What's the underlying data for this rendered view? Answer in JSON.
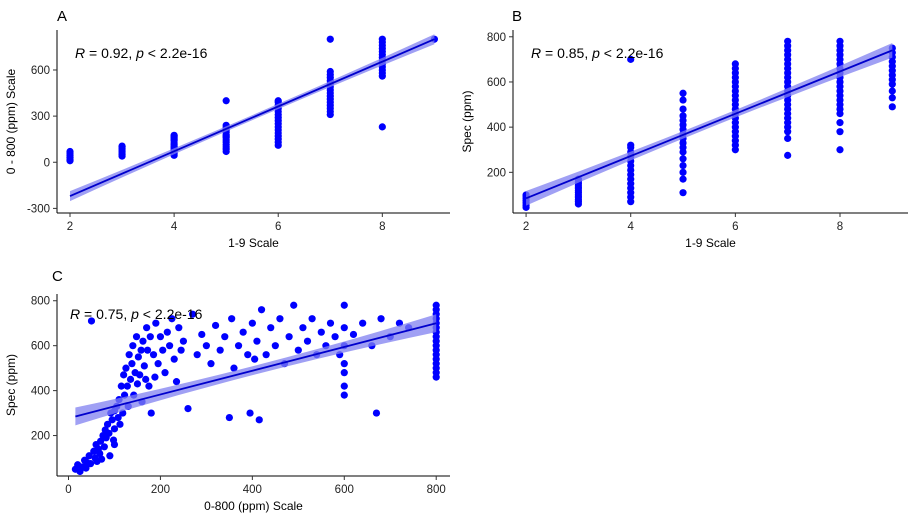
{
  "chart_data": [
    {
      "panel": "A",
      "type": "scatter",
      "xlabel": "1-9 Scale",
      "ylabel": "0 - 800 (ppm) Scale",
      "xlim": [
        1.75,
        9.3
      ],
      "ylim": [
        -330,
        860
      ],
      "xticks": [
        2,
        4,
        6,
        8
      ],
      "yticks": [
        -300,
        0,
        300,
        600
      ],
      "annotation": {
        "R": "0.92",
        "p": "2.2e-16"
      },
      "point_color": "#0000ff",
      "fit_color": "#0000cc",
      "band_color": "#8080f0",
      "fit": {
        "x": [
          2,
          9
        ],
        "y": [
          -220,
          800
        ],
        "band": 18
      },
      "groups": [
        {
          "x": 2,
          "y": [
            10,
            18,
            30,
            45,
            60,
            70
          ]
        },
        {
          "x": 3,
          "y": [
            40,
            50,
            60,
            70,
            80,
            90,
            100,
            105
          ]
        },
        {
          "x": 4,
          "y": [
            45,
            55,
            65,
            75,
            85,
            95,
            105,
            115,
            125,
            140,
            150,
            160,
            170,
            175
          ]
        },
        {
          "x": 5,
          "y": [
            70,
            85,
            100,
            115,
            130,
            145,
            160,
            170,
            180,
            195,
            210,
            225,
            240,
            400
          ]
        },
        {
          "x": 6,
          "y": [
            110,
            130,
            150,
            170,
            190,
            210,
            230,
            250,
            270,
            290,
            310,
            330,
            350,
            370,
            390,
            400
          ]
        },
        {
          "x": 7,
          "y": [
            310,
            330,
            350,
            370,
            390,
            410,
            430,
            450,
            470,
            490,
            510,
            530,
            550,
            570,
            590,
            800
          ]
        },
        {
          "x": 8,
          "y": [
            230,
            560,
            580,
            600,
            620,
            640,
            660,
            680,
            700,
            720,
            740,
            760,
            780,
            800
          ]
        },
        {
          "x": 9,
          "y": [
            800
          ]
        }
      ]
    },
    {
      "panel": "B",
      "type": "scatter",
      "xlabel": "1-9 Scale",
      "ylabel": "Spec (ppm)",
      "xlim": [
        1.75,
        9.3
      ],
      "ylim": [
        20,
        830
      ],
      "xticks": [
        2,
        4,
        6,
        8
      ],
      "yticks": [
        200,
        400,
        600,
        800
      ],
      "annotation": {
        "R": "0.85",
        "p": "2.2e-16"
      },
      "point_color": "#0000ff",
      "fit_color": "#0000cc",
      "band_color": "#8080f0",
      "fit": {
        "x": [
          2,
          9
        ],
        "y": [
          85,
          740
        ],
        "band": 18
      },
      "groups": [
        {
          "x": 2,
          "y": [
            45,
            55,
            65,
            75,
            85,
            95,
            100
          ]
        },
        {
          "x": 3,
          "y": [
            60,
            70,
            80,
            90,
            100,
            110,
            120,
            130,
            140,
            150,
            160,
            170
          ]
        },
        {
          "x": 4,
          "y": [
            70,
            90,
            110,
            130,
            150,
            170,
            190,
            210,
            230,
            250,
            270,
            290,
            310,
            320,
            700
          ]
        },
        {
          "x": 5,
          "y": [
            110,
            170,
            200,
            230,
            260,
            290,
            310,
            330,
            350,
            370,
            390,
            410,
            430,
            450,
            480,
            520,
            550
          ]
        },
        {
          "x": 6,
          "y": [
            300,
            320,
            340,
            360,
            380,
            400,
            420,
            440,
            460,
            480,
            500,
            520,
            540,
            560,
            580,
            600,
            620,
            640,
            660,
            680
          ]
        },
        {
          "x": 7,
          "y": [
            275,
            350,
            380,
            400,
            420,
            440,
            460,
            480,
            500,
            520,
            540,
            560,
            580,
            600,
            620,
            640,
            660,
            680,
            700,
            720,
            740,
            760,
            780
          ]
        },
        {
          "x": 8,
          "y": [
            300,
            380,
            420,
            460,
            480,
            500,
            520,
            540,
            560,
            580,
            600,
            620,
            640,
            660,
            680,
            700,
            720,
            740,
            760,
            780
          ]
        },
        {
          "x": 9,
          "y": [
            490,
            530,
            560,
            590,
            610,
            630,
            650,
            670,
            690,
            710,
            730,
            750
          ]
        }
      ]
    },
    {
      "panel": "C",
      "type": "scatter",
      "xlabel": "0-800 (ppm) Scale",
      "ylabel": "Spec (ppm)",
      "xlim": [
        -25,
        830
      ],
      "ylim": [
        20,
        830
      ],
      "xticks": [
        0,
        200,
        400,
        600,
        800
      ],
      "yticks": [
        200,
        400,
        600,
        800
      ],
      "annotation": {
        "R": "0.75",
        "p": "2.2e-16"
      },
      "point_color": "#0000ff",
      "fit_color": "#0000cc",
      "band_color": "#8080f0",
      "fit": {
        "x": [
          15,
          800
        ],
        "y": [
          285,
          700
        ],
        "band": 22
      },
      "points": [
        [
          15,
          50
        ],
        [
          20,
          70
        ],
        [
          25,
          40
        ],
        [
          30,
          60
        ],
        [
          35,
          90
        ],
        [
          38,
          55
        ],
        [
          40,
          80
        ],
        [
          45,
          110
        ],
        [
          48,
          75
        ],
        [
          50,
          710
        ],
        [
          55,
          130
        ],
        [
          58,
          100
        ],
        [
          60,
          160
        ],
        [
          62,
          85
        ],
        [
          65,
          140
        ],
        [
          68,
          120
        ],
        [
          70,
          175
        ],
        [
          72,
          95
        ],
        [
          75,
          200
        ],
        [
          78,
          150
        ],
        [
          80,
          225
        ],
        [
          82,
          190
        ],
        [
          85,
          250
        ],
        [
          88,
          210
        ],
        [
          90,
          110
        ],
        [
          92,
          300
        ],
        [
          95,
          270
        ],
        [
          98,
          180
        ],
        [
          100,
          310
        ],
        [
          100,
          230
        ],
        [
          100,
          160
        ],
        [
          105,
          330
        ],
        [
          108,
          280
        ],
        [
          110,
          360
        ],
        [
          112,
          250
        ],
        [
          115,
          420
        ],
        [
          118,
          300
        ],
        [
          120,
          470
        ],
        [
          122,
          380
        ],
        [
          125,
          500
        ],
        [
          128,
          420
        ],
        [
          130,
          330
        ],
        [
          132,
          560
        ],
        [
          135,
          450
        ],
        [
          138,
          520
        ],
        [
          140,
          600
        ],
        [
          142,
          380
        ],
        [
          145,
          480
        ],
        [
          148,
          640
        ],
        [
          150,
          430
        ],
        [
          152,
          550
        ],
        [
          155,
          470
        ],
        [
          158,
          580
        ],
        [
          160,
          350
        ],
        [
          162,
          620
        ],
        [
          165,
          510
        ],
        [
          168,
          450
        ],
        [
          170,
          680
        ],
        [
          172,
          580
        ],
        [
          175,
          420
        ],
        [
          178,
          640
        ],
        [
          180,
          300
        ],
        [
          185,
          560
        ],
        [
          188,
          460
        ],
        [
          190,
          700
        ],
        [
          195,
          520
        ],
        [
          200,
          640
        ],
        [
          205,
          580
        ],
        [
          210,
          480
        ],
        [
          215,
          660
        ],
        [
          220,
          600
        ],
        [
          225,
          720
        ],
        [
          230,
          540
        ],
        [
          235,
          440
        ],
        [
          240,
          680
        ],
        [
          245,
          580
        ],
        [
          250,
          620
        ],
        [
          260,
          320
        ],
        [
          270,
          740
        ],
        [
          280,
          560
        ],
        [
          290,
          650
        ],
        [
          300,
          600
        ],
        [
          310,
          520
        ],
        [
          320,
          690
        ],
        [
          330,
          580
        ],
        [
          340,
          640
        ],
        [
          350,
          280
        ],
        [
          355,
          720
        ],
        [
          360,
          500
        ],
        [
          370,
          600
        ],
        [
          380,
          660
        ],
        [
          390,
          560
        ],
        [
          395,
          300
        ],
        [
          400,
          700
        ],
        [
          405,
          540
        ],
        [
          410,
          620
        ],
        [
          415,
          270
        ],
        [
          420,
          760
        ],
        [
          430,
          560
        ],
        [
          440,
          680
        ],
        [
          450,
          600
        ],
        [
          460,
          720
        ],
        [
          470,
          520
        ],
        [
          480,
          640
        ],
        [
          490,
          780
        ],
        [
          500,
          580
        ],
        [
          510,
          680
        ],
        [
          520,
          620
        ],
        [
          530,
          720
        ],
        [
          540,
          560
        ],
        [
          550,
          660
        ],
        [
          560,
          600
        ],
        [
          570,
          700
        ],
        [
          580,
          640
        ],
        [
          590,
          560
        ],
        [
          600,
          380
        ],
        [
          600,
          420
        ],
        [
          600,
          480
        ],
        [
          600,
          520
        ],
        [
          600,
          600
        ],
        [
          600,
          680
        ],
        [
          600,
          780
        ],
        [
          620,
          650
        ],
        [
          640,
          700
        ],
        [
          660,
          600
        ],
        [
          670,
          300
        ],
        [
          680,
          720
        ],
        [
          700,
          640
        ],
        [
          720,
          700
        ],
        [
          740,
          680
        ],
        [
          800,
          460
        ],
        [
          800,
          480
        ],
        [
          800,
          500
        ],
        [
          800,
          520
        ],
        [
          800,
          540
        ],
        [
          800,
          560
        ],
        [
          800,
          580
        ],
        [
          800,
          600
        ],
        [
          800,
          620
        ],
        [
          800,
          640
        ],
        [
          800,
          660
        ],
        [
          800,
          680
        ],
        [
          800,
          700
        ],
        [
          800,
          720
        ],
        [
          800,
          740
        ],
        [
          800,
          760
        ],
        [
          800,
          780
        ]
      ]
    }
  ]
}
